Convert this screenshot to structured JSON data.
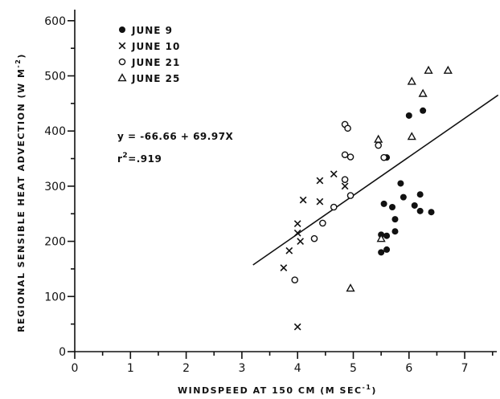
{
  "chart_data": {
    "type": "scatter",
    "xlabel_main": "WINDSPEED AT 150 CM (M SEC",
    "xlabel_sup": "-1",
    "xlabel_end": ")",
    "ylabel_main": "REGIONAL SENSIBLE HEAT ADVECTION (W M",
    "ylabel_sup": "-2",
    "ylabel_end": ")",
    "xlim": [
      0,
      7.6
    ],
    "ylim": [
      0,
      620
    ],
    "xticks": [
      "0",
      "1",
      "2",
      "3",
      "4",
      "5",
      "6",
      "7"
    ],
    "yticks": [
      "0",
      "100",
      "200",
      "300",
      "400",
      "500",
      "600"
    ],
    "legend_position": "top-left",
    "grid": false,
    "equation_text": "y = -66.66 + 69.97X",
    "r2_prefix": "r",
    "r2_sup": "2",
    "r2_suffix": "=.919",
    "regression": {
      "intercept": -66.66,
      "slope": 69.97,
      "x_range": [
        3.2,
        7.6
      ]
    },
    "series": [
      {
        "name": "JUNE 9",
        "marker": "filled-circle",
        "points": [
          [
            5.5,
            212
          ],
          [
            5.6,
            210
          ],
          [
            5.5,
            180
          ],
          [
            5.6,
            185
          ],
          [
            5.55,
            268
          ],
          [
            5.6,
            352
          ],
          [
            5.7,
            262
          ],
          [
            5.75,
            240
          ],
          [
            5.75,
            218
          ],
          [
            5.85,
            305
          ],
          [
            5.9,
            280
          ],
          [
            6.0,
            428
          ],
          [
            6.1,
            265
          ],
          [
            6.2,
            255
          ],
          [
            6.2,
            285
          ],
          [
            6.25,
            437
          ],
          [
            6.4,
            253
          ]
        ]
      },
      {
        "name": "JUNE 10",
        "marker": "x",
        "points": [
          [
            3.75,
            152
          ],
          [
            3.85,
            183
          ],
          [
            4.0,
            232
          ],
          [
            4.0,
            215
          ],
          [
            4.05,
            200
          ],
          [
            4.1,
            275
          ],
          [
            4.4,
            310
          ],
          [
            4.4,
            272
          ],
          [
            4.65,
            322
          ],
          [
            4.85,
            300
          ],
          [
            4.0,
            45
          ]
        ]
      },
      {
        "name": "JUNE 21",
        "marker": "open-circle",
        "points": [
          [
            4.85,
            412
          ],
          [
            4.9,
            405
          ],
          [
            4.85,
            357
          ],
          [
            4.95,
            353
          ],
          [
            4.85,
            312
          ],
          [
            4.95,
            283
          ],
          [
            4.65,
            262
          ],
          [
            4.45,
            233
          ],
          [
            4.3,
            205
          ],
          [
            3.95,
            130
          ],
          [
            5.45,
            374
          ],
          [
            5.55,
            352
          ]
        ]
      },
      {
        "name": "JUNE 25",
        "marker": "open-triangle",
        "points": [
          [
            5.45,
            385
          ],
          [
            6.05,
            490
          ],
          [
            6.35,
            510
          ],
          [
            6.7,
            510
          ],
          [
            6.25,
            468
          ],
          [
            6.05,
            390
          ],
          [
            5.5,
            205
          ],
          [
            4.95,
            115
          ]
        ]
      }
    ]
  }
}
